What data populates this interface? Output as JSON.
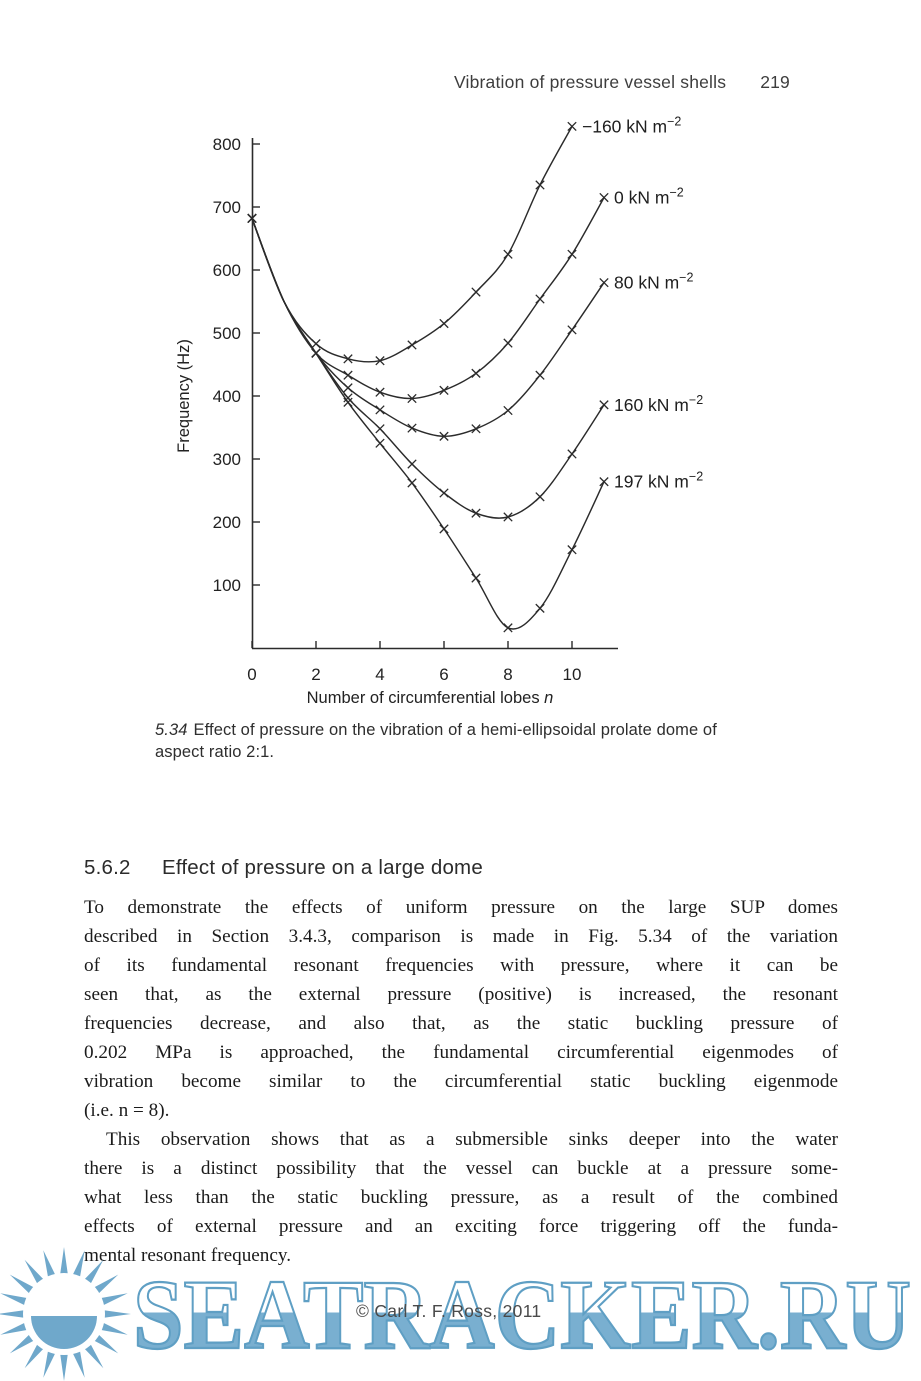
{
  "header": {
    "title": "Vibration of pressure vessel shells",
    "page_number": "219"
  },
  "chart_data": {
    "type": "line",
    "title": "",
    "xlabel": "Number of circumferential lobes n",
    "ylabel": "Frequency (Hz)",
    "xlim": [
      0,
      11.4
    ],
    "ylim": [
      0,
      850
    ],
    "x_ticks": [
      0,
      2,
      4,
      6,
      8,
      10
    ],
    "y_ticks": [
      100,
      200,
      300,
      400,
      500,
      600,
      700,
      800
    ],
    "grid": false,
    "marker": "x",
    "marker_skip_x": [
      1
    ],
    "legend_position": "end-of-curve labels",
    "line_color": "#2b2b2b",
    "series": [
      {
        "name": "−160 kN m⁻²",
        "points": [
          [
            0,
            682
          ],
          [
            1,
            550
          ],
          [
            2,
            483
          ],
          [
            3,
            459
          ],
          [
            4,
            456
          ],
          [
            5,
            481
          ],
          [
            6,
            515
          ],
          [
            7,
            565
          ],
          [
            8,
            625
          ],
          [
            9,
            735
          ],
          [
            10,
            828
          ]
        ]
      },
      {
        "name": "0 kN m⁻²",
        "points": [
          [
            0,
            682
          ],
          [
            1,
            550
          ],
          [
            2,
            468
          ],
          [
            3,
            433
          ],
          [
            4,
            406
          ],
          [
            5,
            396
          ],
          [
            6,
            409
          ],
          [
            7,
            436
          ],
          [
            8,
            484
          ],
          [
            9,
            554
          ],
          [
            10,
            625
          ],
          [
            11,
            715
          ]
        ]
      },
      {
        "name": "80 kN m⁻²",
        "points": [
          [
            0,
            682
          ],
          [
            1,
            550
          ],
          [
            2,
            468
          ],
          [
            3,
            413
          ],
          [
            4,
            378
          ],
          [
            5,
            349
          ],
          [
            6,
            336
          ],
          [
            7,
            348
          ],
          [
            8,
            377
          ],
          [
            9,
            433
          ],
          [
            10,
            505
          ],
          [
            11,
            580
          ]
        ]
      },
      {
        "name": "160 kN m⁻²",
        "points": [
          [
            0,
            682
          ],
          [
            1,
            550
          ],
          [
            2,
            468
          ],
          [
            3,
            397
          ],
          [
            4,
            348
          ],
          [
            5,
            292
          ],
          [
            6,
            246
          ],
          [
            7,
            214
          ],
          [
            8,
            208
          ],
          [
            9,
            240
          ],
          [
            10,
            308
          ],
          [
            11,
            386
          ]
        ]
      },
      {
        "name": "197 kN m⁻²",
        "points": [
          [
            0,
            682
          ],
          [
            1,
            550
          ],
          [
            2,
            468
          ],
          [
            3,
            390
          ],
          [
            4,
            325
          ],
          [
            5,
            262
          ],
          [
            6,
            189
          ],
          [
            7,
            111
          ],
          [
            8,
            32
          ],
          [
            9,
            63
          ],
          [
            10,
            156
          ],
          [
            11,
            264
          ]
        ]
      }
    ]
  },
  "figure": {
    "caption_number": "5.34",
    "caption_text": "Effect of pressure on the vibration of a hemi-ellipsoidal prolate dome of aspect ratio 2:1."
  },
  "section": {
    "number": "5.6.2",
    "title": "Effect of pressure on a large dome"
  },
  "body": {
    "paragraphs": [
      {
        "indent": false,
        "lines": [
          "To demonstrate the effects of uniform pressure on the large SUP domes",
          "described in Section 3.4.3, comparison is made in Fig. 5.34 of the variation",
          "of its fundamental resonant frequencies with pressure, where it can be",
          "seen that, as the external pressure (positive) is increased, the resonant",
          "frequencies decrease, and also that, as the static buckling pressure of",
          "0.202 MPa is approached, the fundamental circumferential eigenmodes of",
          "vibration become similar to the circumferential static buckling eigenmode",
          "(i.e. n = 8)."
        ]
      },
      {
        "indent": true,
        "lines": [
          "This observation shows that as a submersible sinks deeper into the water",
          "there is a distinct possibility that the vessel can buckle at a pressure some-",
          "what less than the static buckling pressure, as a result of the combined",
          "effects of external pressure and an exciting force triggering off the funda-",
          "mental resonant frequency."
        ]
      }
    ]
  },
  "watermark": {
    "text": "SEATRACKER.RU",
    "copyright": "© Carl T. F. Ross, 2011",
    "color": "#6fa8cb"
  }
}
